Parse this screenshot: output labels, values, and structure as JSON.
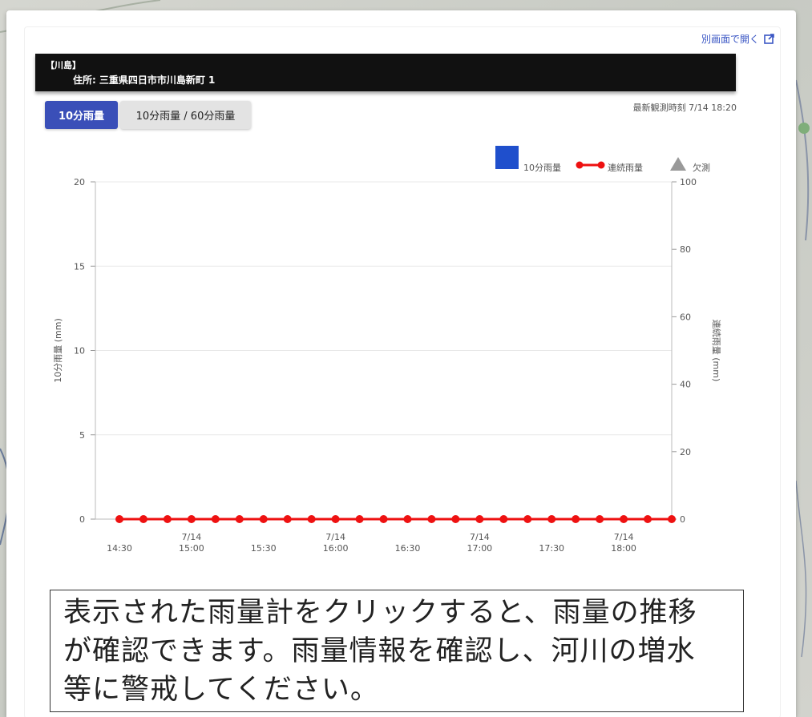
{
  "header": {
    "open_link_label": "別画面で開く",
    "station_name": "【川島】",
    "address_label": "住所:",
    "address_value": "三重県四日市市川島新町 1"
  },
  "tabs": [
    {
      "label": "10分雨量",
      "active": true
    },
    {
      "label": "10分雨量 / 60分雨量",
      "active": false
    }
  ],
  "latest_observation": "最新観測時刻 7/14 18:20",
  "legend": [
    {
      "label": "10分雨量",
      "shape": "square",
      "color": "#1f4fcc"
    },
    {
      "label": "連続雨量",
      "shape": "line-dot",
      "color": "#ee1111"
    },
    {
      "label": "欠測",
      "shape": "triangle",
      "color": "#999999"
    }
  ],
  "chart_data": {
    "type": "bar",
    "xlabel": "",
    "ylabel": "10分雨量 (mm)",
    "y2label": "連続雨量 (mm)",
    "ylim": [
      0,
      20
    ],
    "y2lim": [
      0,
      100
    ],
    "yticks": [
      "0",
      "5",
      "10",
      "15",
      "20"
    ],
    "y2ticks": [
      "0",
      "20",
      "40",
      "60",
      "80",
      "100"
    ],
    "x": [
      "14:30",
      "14:40",
      "14:50",
      "15:00",
      "15:10",
      "15:20",
      "15:30",
      "15:40",
      "15:50",
      "16:00",
      "16:10",
      "16:20",
      "16:30",
      "16:40",
      "16:50",
      "17:00",
      "17:10",
      "17:20",
      "17:30",
      "17:40",
      "17:50",
      "18:00",
      "18:10",
      "18:20"
    ],
    "xtick_labels": [
      {
        "index": 0,
        "date": "",
        "time": "14:30"
      },
      {
        "index": 3,
        "date": "7/14",
        "time": "15:00"
      },
      {
        "index": 6,
        "date": "",
        "time": "15:30"
      },
      {
        "index": 9,
        "date": "7/14",
        "time": "16:00"
      },
      {
        "index": 12,
        "date": "",
        "time": "16:30"
      },
      {
        "index": 15,
        "date": "7/14",
        "time": "17:00"
      },
      {
        "index": 18,
        "date": "",
        "time": "17:30"
      },
      {
        "index": 21,
        "date": "7/14",
        "time": "18:00"
      }
    ],
    "series": [
      {
        "name": "10分雨量",
        "type": "bar",
        "axis": "left",
        "color": "#1f4fcc",
        "values": [
          0,
          0,
          0,
          0,
          0,
          0,
          0,
          0,
          0,
          0,
          0,
          0,
          0,
          0,
          0,
          0,
          0,
          0,
          0,
          0,
          0,
          0,
          0,
          0
        ]
      },
      {
        "name": "連続雨量",
        "type": "line",
        "axis": "right",
        "color": "#ee1111",
        "values": [
          0,
          0,
          0,
          0,
          0,
          0,
          0,
          0,
          0,
          0,
          0,
          0,
          0,
          0,
          0,
          0,
          0,
          0,
          0,
          0,
          0,
          0,
          0,
          0
        ]
      }
    ],
    "grid": true
  },
  "note": {
    "line1": "表示された雨量計をクリックすると、雨量の推移",
    "line2": "が確認できます。雨量情報を確認し、河川の増水",
    "line3": "等に警戒してください。"
  }
}
